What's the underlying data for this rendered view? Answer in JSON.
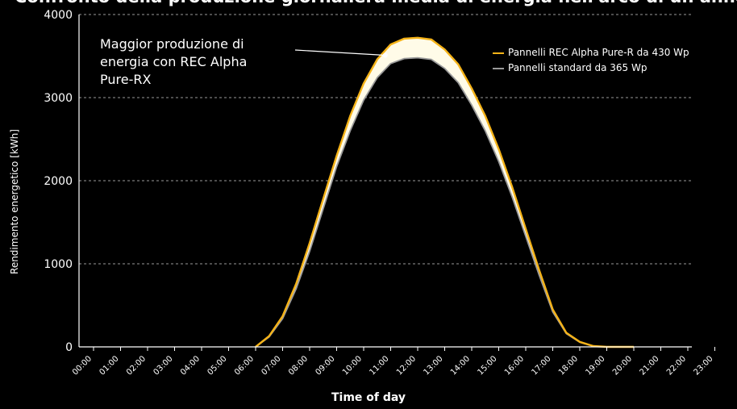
{
  "chart_data": {
    "type": "area",
    "title": "Confronto della produzione giornaliera media di energia nell'arco di un anno",
    "xlabel": "Time of day",
    "ylabel": "Rendimento energetico [kWh]",
    "categories": [
      "00:00",
      "01:00",
      "02:00",
      "03:00",
      "04:00",
      "05:00",
      "06:00",
      "07:00",
      "08:00",
      "09:00",
      "10:00",
      "11:00",
      "12:00",
      "13:00",
      "14:00",
      "15:00",
      "16:00",
      "17:00",
      "18:00",
      "19:00",
      "20:00",
      "21:00",
      "22:00",
      "23:00"
    ],
    "yticks": [
      "0",
      "1000",
      "2000",
      "3000",
      "4000"
    ],
    "ylim": [
      0,
      4000
    ],
    "series": [
      {
        "name": "Pannelli REC Alpha  Pure-R da 430 Wp",
        "color": "#f5b318",
        "x": [
          6.0,
          6.5,
          7.0,
          7.5,
          8.0,
          8.5,
          9.0,
          9.5,
          10.0,
          10.5,
          11.0,
          11.5,
          12.0,
          12.5,
          13.0,
          13.5,
          14.0,
          14.5,
          15.0,
          15.5,
          16.0,
          16.5,
          17.0,
          17.5,
          18.0,
          18.5,
          19.0,
          19.5,
          20.0
        ],
        "values": [
          0,
          130,
          370,
          760,
          1250,
          1780,
          2300,
          2780,
          3170,
          3460,
          3640,
          3710,
          3720,
          3700,
          3580,
          3400,
          3110,
          2780,
          2380,
          1920,
          1420,
          920,
          450,
          170,
          60,
          10,
          0,
          0,
          0
        ]
      },
      {
        "name": "Pannelli standard da 365 Wp",
        "color": "#9a9a9a",
        "x": [
          6.0,
          6.5,
          7.0,
          7.5,
          8.0,
          8.5,
          9.0,
          9.5,
          10.0,
          10.5,
          11.0,
          11.5,
          12.0,
          12.5,
          13.0,
          13.5,
          14.0,
          14.5,
          15.0,
          15.5,
          16.0,
          16.5,
          17.0,
          17.5,
          18.0,
          18.5,
          19.0,
          19.5,
          20.0
        ],
        "values": [
          0,
          120,
          340,
          700,
          1150,
          1660,
          2170,
          2600,
          2970,
          3240,
          3410,
          3470,
          3480,
          3460,
          3350,
          3180,
          2910,
          2600,
          2230,
          1800,
          1330,
          860,
          420,
          160,
          55,
          10,
          0,
          0,
          0
        ]
      }
    ],
    "annotation": {
      "text": "Maggior produzione di energia con REC Alpha Pure-RX",
      "point": {
        "x": 10.8,
        "y": 3510
      }
    },
    "fill_between_color": "#fffbe8",
    "grid": "horizontal dashed",
    "legend": "top-right"
  }
}
